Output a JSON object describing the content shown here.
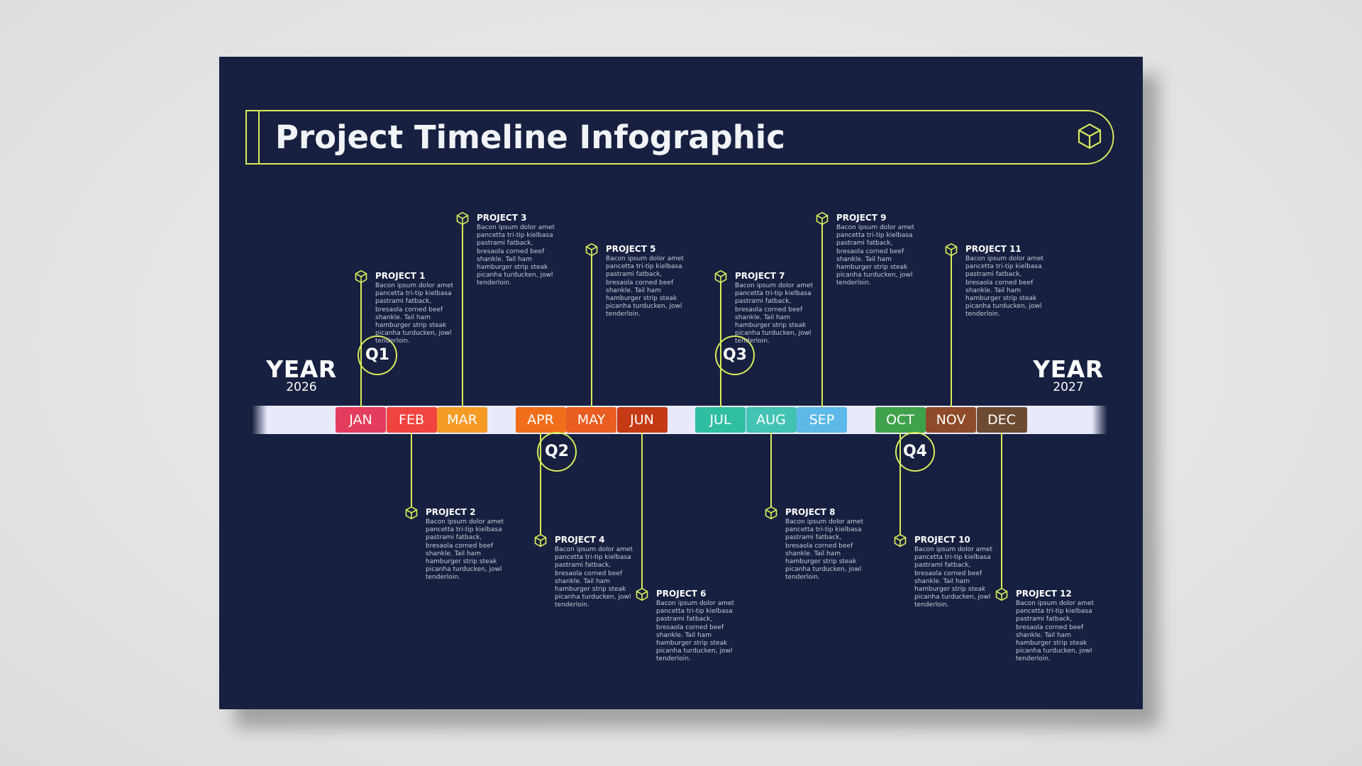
{
  "title": "Project Timeline Infographic",
  "year_start": {
    "label": "YEAR",
    "value": "2026"
  },
  "year_end": {
    "label": "YEAR",
    "value": "2027"
  },
  "accent": "#d9ec5a",
  "background": "#172040",
  "months": [
    {
      "label": "JAN",
      "color": "#e43c5c"
    },
    {
      "label": "FEB",
      "color": "#f0443f"
    },
    {
      "label": "MAR",
      "color": "#f59b25"
    },
    {
      "label": "APR",
      "color": "#f06e1a"
    },
    {
      "label": "MAY",
      "color": "#e95d20"
    },
    {
      "label": "JUN",
      "color": "#c43a15"
    },
    {
      "label": "JUL",
      "color": "#30bea3"
    },
    {
      "label": "AUG",
      "color": "#43c3b3"
    },
    {
      "label": "SEP",
      "color": "#5cb9e8"
    },
    {
      "label": "OCT",
      "color": "#3fa14c"
    },
    {
      "label": "NOV",
      "color": "#8f4a29"
    },
    {
      "label": "DEC",
      "color": "#6c4b31"
    }
  ],
  "quarters": [
    "Q1",
    "Q2",
    "Q3",
    "Q4"
  ],
  "projects": [
    {
      "title": "PROJECT 1",
      "month": "JAN",
      "side": "top",
      "desc": "Bacon ipsum dolor amet pancetta tri-tip kielbasa pastrami fatback, bresaola corned beef shankle. Tail ham hamburger strip steak picanha turducken, jowl tenderloin."
    },
    {
      "title": "PROJECT 2",
      "month": "FEB",
      "side": "bottom",
      "desc": "Bacon ipsum dolor amet pancetta tri-tip kielbasa pastrami fatback, bresaola corned beef shankle. Tail ham hamburger strip steak picanha turducken, jowl tenderloin."
    },
    {
      "title": "PROJECT 3",
      "month": "MAR",
      "side": "top",
      "desc": "Bacon ipsum dolor amet pancetta tri-tip kielbasa pastrami fatback, bresaola corned beef shankle. Tail ham hamburger strip steak picanha turducken, jowl tenderloin."
    },
    {
      "title": "PROJECT 4",
      "month": "APR",
      "side": "bottom",
      "desc": "Bacon ipsum dolor amet pancetta tri-tip kielbasa pastrami fatback, bresaola corned beef shankle. Tail ham hamburger strip steak picanha turducken, jowl tenderloin."
    },
    {
      "title": "PROJECT 5",
      "month": "MAY",
      "side": "top",
      "desc": "Bacon ipsum dolor amet pancetta tri-tip kielbasa pastrami fatback, bresaola corned beef shankle. Tail ham hamburger strip steak picanha turducken, jowl tenderloin."
    },
    {
      "title": "PROJECT 6",
      "month": "JUN",
      "side": "bottom",
      "desc": "Bacon ipsum dolor amet pancetta tri-tip kielbasa pastrami fatback, bresaola corned beef shankle. Tail ham hamburger strip steak picanha turducken, jowl tenderloin."
    },
    {
      "title": "PROJECT 7",
      "month": "JUL",
      "side": "top",
      "desc": "Bacon ipsum dolor amet pancetta tri-tip kielbasa pastrami fatback, bresaola corned beef shankle. Tail ham hamburger strip steak picanha turducken, jowl tenderloin."
    },
    {
      "title": "PROJECT 8",
      "month": "AUG",
      "side": "bottom",
      "desc": "Bacon ipsum dolor amet pancetta tri-tip kielbasa pastrami fatback, bresaola corned beef shankle. Tail ham hamburger strip steak picanha turducken, jowl tenderloin."
    },
    {
      "title": "PROJECT 9",
      "month": "SEP",
      "side": "top",
      "desc": "Bacon ipsum dolor amet pancetta tri-tip kielbasa pastrami fatback, bresaola corned beef shankle. Tail ham hamburger strip steak picanha turducken, jowl tenderloin."
    },
    {
      "title": "PROJECT 10",
      "month": "OCT",
      "side": "bottom",
      "desc": "Bacon ipsum dolor amet pancetta tri-tip kielbasa pastrami fatback, bresaola corned beef shankle. Tail ham hamburger strip steak picanha turducken, jowl tenderloin."
    },
    {
      "title": "PROJECT 11",
      "month": "NOV",
      "side": "top",
      "desc": "Bacon ipsum dolor amet pancetta tri-tip kielbasa pastrami fatback, bresaola corned beef shankle. Tail ham hamburger strip steak picanha turducken, jowl tenderloin."
    },
    {
      "title": "PROJECT 12",
      "month": "DEC",
      "side": "bottom",
      "desc": "Bacon ipsum dolor amet pancetta tri-tip kielbasa pastrami fatback, bresaola corned beef shankle. Tail ham hamburger strip steak picanha turducken, jowl tenderloin."
    }
  ]
}
